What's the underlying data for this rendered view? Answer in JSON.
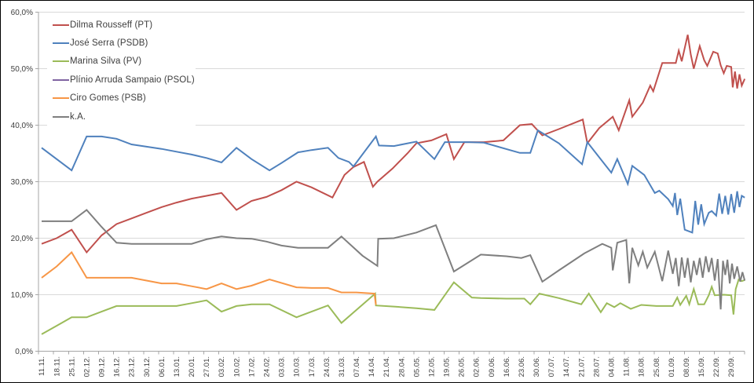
{
  "chart_data": {
    "type": "line",
    "title": "",
    "xlabel": "",
    "ylabel": "",
    "y_axis": {
      "min": 0,
      "max": 60,
      "step": 10,
      "tick_labels": [
        "0,0%",
        "10,0%",
        "20,0%",
        "30,0%",
        "40,0%",
        "50,0%",
        "60,0%"
      ]
    },
    "x_axis": {
      "tick_labels": [
        "11.11.",
        "18.11.",
        "25.11.",
        "02.12.",
        "09.12.",
        "16.12.",
        "23.12.",
        "30.12.",
        "06.01.",
        "13.01.",
        "20.01.",
        "27.01.",
        "03.02.",
        "10.02.",
        "17.02.",
        "24.02.",
        "03.03.",
        "10.03.",
        "17.03.",
        "24.03.",
        "31.03.",
        "07.04.",
        "14.04.",
        "21.04.",
        "28.04.",
        "05.05.",
        "12.05.",
        "19.05.",
        "26.05.",
        "02.06.",
        "09.06.",
        "16.06.",
        "23.06.",
        "30.06.",
        "07.07.",
        "14.07.",
        "21.07.",
        "28.07.",
        "04.08.",
        "11.08.",
        "18.08.",
        "25.08.",
        "01.09.",
        "08.09.",
        "15.09.",
        "22.09.",
        "29.09."
      ]
    },
    "grid": true,
    "legend_position": "top-left",
    "colors": {
      "gridline": "#d9d9d9",
      "axis": "#a6a6a6",
      "tick_label": "#404040"
    },
    "series": [
      {
        "id": "dilma-rousseff-pt",
        "name": "Dilma Rousseff (PT)",
        "color": "#C0504D",
        "points": [
          [
            0,
            19
          ],
          [
            1,
            20
          ],
          [
            2,
            21.5
          ],
          [
            3,
            17.5
          ],
          [
            4,
            20.5
          ],
          [
            5,
            22.5
          ],
          [
            6,
            23.5
          ],
          [
            7,
            24.5
          ],
          [
            8,
            25.5
          ],
          [
            9,
            26.3
          ],
          [
            10,
            27
          ],
          [
            11,
            27.5
          ],
          [
            12,
            28
          ],
          [
            13,
            25
          ],
          [
            14,
            26.6
          ],
          [
            15,
            27.3
          ],
          [
            16,
            28.5
          ],
          [
            17,
            30
          ],
          [
            18,
            29
          ],
          [
            19.4,
            27.2
          ],
          [
            20.2,
            31.2
          ],
          [
            20.8,
            32.6
          ],
          [
            21.5,
            33.5
          ],
          [
            22.1,
            29.1
          ],
          [
            22.4,
            30
          ],
          [
            23.4,
            32.3
          ],
          [
            24.4,
            35
          ],
          [
            25,
            36.8
          ],
          [
            26,
            37.3
          ],
          [
            27,
            38.4
          ],
          [
            27.5,
            34
          ],
          [
            28.2,
            37
          ],
          [
            29.5,
            37
          ],
          [
            30.8,
            37.3
          ],
          [
            31.9,
            40
          ],
          [
            32.7,
            40.2
          ],
          [
            33.4,
            38.2
          ],
          [
            34.5,
            39.3
          ],
          [
            36.1,
            41
          ],
          [
            36.4,
            36.8
          ],
          [
            37.2,
            39.5
          ],
          [
            38.1,
            41.5
          ],
          [
            38.5,
            39.1
          ],
          [
            39.2,
            44.4
          ],
          [
            39.4,
            41.5
          ],
          [
            40.1,
            44
          ],
          [
            40.6,
            47
          ],
          [
            40.8,
            46
          ],
          [
            41.4,
            51
          ],
          [
            42.3,
            51
          ],
          [
            42.5,
            53.2
          ],
          [
            42.7,
            51.3
          ],
          [
            43.1,
            56
          ],
          [
            43.3,
            52.5
          ],
          [
            43.5,
            50
          ],
          [
            43.9,
            54
          ],
          [
            44.2,
            51.5
          ],
          [
            44.4,
            50.5
          ],
          [
            44.8,
            53
          ],
          [
            45.1,
            52.7
          ],
          [
            45.3,
            50.6
          ],
          [
            45.5,
            49.2
          ],
          [
            45.7,
            50.5
          ],
          [
            46,
            50.3
          ],
          [
            46.1,
            46.7
          ],
          [
            46.25,
            49.5
          ],
          [
            46.4,
            46.5
          ],
          [
            46.55,
            49
          ],
          [
            46.7,
            47
          ],
          [
            46.9,
            48.2
          ]
        ]
      },
      {
        "id": "jose-serra-psdb",
        "name": "José Serra (PSDB)",
        "color": "#4F81BD",
        "points": [
          [
            0,
            36
          ],
          [
            1,
            34
          ],
          [
            2,
            32
          ],
          [
            3,
            38
          ],
          [
            4,
            38
          ],
          [
            5,
            37.6
          ],
          [
            6,
            36.6
          ],
          [
            7,
            36.2
          ],
          [
            8,
            35.8
          ],
          [
            9,
            35.3
          ],
          [
            10,
            34.8
          ],
          [
            11,
            34.2
          ],
          [
            12,
            33.4
          ],
          [
            13,
            36
          ],
          [
            14,
            34
          ],
          [
            15.2,
            32
          ],
          [
            16,
            33.3
          ],
          [
            17.1,
            35.2
          ],
          [
            18,
            35.6
          ],
          [
            19.1,
            36
          ],
          [
            19.8,
            34.2
          ],
          [
            20.5,
            33.5
          ],
          [
            20.8,
            32.7
          ],
          [
            22.3,
            38
          ],
          [
            22.5,
            36.4
          ],
          [
            23.5,
            36.3
          ],
          [
            25,
            37.1
          ],
          [
            26.2,
            34
          ],
          [
            26.9,
            37
          ],
          [
            28.5,
            37
          ],
          [
            29.5,
            36.9
          ],
          [
            31.9,
            35.1
          ],
          [
            32.6,
            35.1
          ],
          [
            33.1,
            39.1
          ],
          [
            34.5,
            36.8
          ],
          [
            36.05,
            33.1
          ],
          [
            36.4,
            37
          ],
          [
            38,
            31.6
          ],
          [
            38.4,
            34
          ],
          [
            39.1,
            29.6
          ],
          [
            39.4,
            32.8
          ],
          [
            40.2,
            31.2
          ],
          [
            40.9,
            28
          ],
          [
            41.2,
            28.4
          ],
          [
            41.8,
            26.9
          ],
          [
            42.1,
            25.7
          ],
          [
            42.25,
            28
          ],
          [
            42.4,
            24.1
          ],
          [
            42.6,
            27
          ],
          [
            42.9,
            21.5
          ],
          [
            43.4,
            21
          ],
          [
            43.6,
            26.6
          ],
          [
            43.8,
            22.4
          ],
          [
            44,
            26
          ],
          [
            44.2,
            22.5
          ],
          [
            44.5,
            24.5
          ],
          [
            44.7,
            24.8
          ],
          [
            45,
            24
          ],
          [
            45.2,
            27.9
          ],
          [
            45.4,
            24.3
          ],
          [
            45.6,
            27.5
          ],
          [
            45.8,
            24.2
          ],
          [
            46,
            27.8
          ],
          [
            46.2,
            24.5
          ],
          [
            46.4,
            28.3
          ],
          [
            46.55,
            25.5
          ],
          [
            46.7,
            27.5
          ],
          [
            46.9,
            27.2
          ]
        ]
      },
      {
        "id": "marina-silva-pv",
        "name": "Marina Silva (PV)",
        "color": "#9BBB59",
        "points": [
          [
            0,
            3
          ],
          [
            1,
            4.5
          ],
          [
            2,
            6
          ],
          [
            3,
            6
          ],
          [
            4,
            7
          ],
          [
            5,
            8
          ],
          [
            6,
            8
          ],
          [
            7,
            8
          ],
          [
            8,
            8
          ],
          [
            9,
            8
          ],
          [
            10,
            8.5
          ],
          [
            11,
            9
          ],
          [
            12,
            7
          ],
          [
            13,
            8
          ],
          [
            14,
            8.3
          ],
          [
            15.2,
            8.3
          ],
          [
            17,
            6
          ],
          [
            19.1,
            8.1
          ],
          [
            20,
            5
          ],
          [
            22.25,
            10.2
          ],
          [
            22.3,
            8.1
          ],
          [
            23.5,
            7.9
          ],
          [
            25,
            7.6
          ],
          [
            26.2,
            7.3
          ],
          [
            27.5,
            12.2
          ],
          [
            28.7,
            9.5
          ],
          [
            29.3,
            9.4
          ],
          [
            31,
            9.3
          ],
          [
            32.2,
            9.3
          ],
          [
            32.6,
            8.3
          ],
          [
            33.2,
            10.2
          ],
          [
            34.5,
            9.4
          ],
          [
            36,
            8.3
          ],
          [
            36.5,
            10.2
          ],
          [
            37.3,
            6.9
          ],
          [
            37.7,
            8.5
          ],
          [
            38.2,
            7.8
          ],
          [
            38.6,
            8.5
          ],
          [
            39.3,
            7.5
          ],
          [
            40,
            8.2
          ],
          [
            41,
            8
          ],
          [
            42.1,
            8
          ],
          [
            42.4,
            9.5
          ],
          [
            42.6,
            8.2
          ],
          [
            43,
            9.8
          ],
          [
            43.2,
            8.3
          ],
          [
            43.5,
            11
          ],
          [
            43.8,
            8.3
          ],
          [
            44.2,
            8.3
          ],
          [
            44.5,
            9.9
          ],
          [
            44.7,
            11.4
          ],
          [
            44.9,
            9.9
          ],
          [
            45.5,
            10
          ],
          [
            46,
            9.9
          ],
          [
            46.15,
            6.5
          ],
          [
            46.3,
            11
          ],
          [
            46.5,
            12.7
          ],
          [
            46.7,
            12.4
          ],
          [
            46.9,
            12.6
          ]
        ]
      },
      {
        "id": "plinio-arruda-sampaio-psol",
        "name": "Plínio Arruda Sampaio (PSOL)",
        "color": "#8064A2",
        "points": []
      },
      {
        "id": "ciro-gomes-psb",
        "name": "Ciro Gomes (PSB)",
        "color": "#F79646",
        "points": [
          [
            0,
            13
          ],
          [
            1,
            15
          ],
          [
            2,
            17.5
          ],
          [
            3,
            13
          ],
          [
            4,
            13
          ],
          [
            5,
            13
          ],
          [
            6,
            13
          ],
          [
            7,
            12.5
          ],
          [
            8,
            12
          ],
          [
            9,
            12
          ],
          [
            10,
            11.5
          ],
          [
            11,
            11
          ],
          [
            12,
            12
          ],
          [
            13,
            11
          ],
          [
            14,
            11.6
          ],
          [
            15.2,
            12.7
          ],
          [
            17,
            11.3
          ],
          [
            18,
            11.2
          ],
          [
            19.1,
            11.2
          ],
          [
            20,
            10.4
          ],
          [
            21,
            10.4
          ],
          [
            22.2,
            10.2
          ],
          [
            22.3,
            8.2
          ]
        ]
      },
      {
        "id": "ka",
        "name": "k.A.",
        "color": "#7F7F7F",
        "points": [
          [
            0,
            23
          ],
          [
            1,
            23
          ],
          [
            2,
            23
          ],
          [
            3,
            25
          ],
          [
            4,
            22
          ],
          [
            5,
            19.2
          ],
          [
            6,
            19
          ],
          [
            7,
            19
          ],
          [
            8,
            19
          ],
          [
            9,
            19
          ],
          [
            10,
            19
          ],
          [
            11,
            19.8
          ],
          [
            12,
            20.3
          ],
          [
            13,
            20
          ],
          [
            14,
            19.9
          ],
          [
            15,
            19.4
          ],
          [
            16,
            18.7
          ],
          [
            17.1,
            18.3
          ],
          [
            19.1,
            18.3
          ],
          [
            20,
            20.3
          ],
          [
            21.4,
            16.9
          ],
          [
            22.4,
            15.1
          ],
          [
            22.45,
            19.9
          ],
          [
            23.5,
            20
          ],
          [
            25,
            21
          ],
          [
            26.3,
            22.3
          ],
          [
            27.5,
            14.1
          ],
          [
            29.3,
            17.1
          ],
          [
            31,
            16.8
          ],
          [
            32,
            16.5
          ],
          [
            32.6,
            17
          ],
          [
            33.4,
            12.3
          ],
          [
            34.5,
            14.3
          ],
          [
            36.2,
            17.3
          ],
          [
            37.4,
            19
          ],
          [
            38,
            18.3
          ],
          [
            38.1,
            14.3
          ],
          [
            38.4,
            19.2
          ],
          [
            39,
            19.7
          ],
          [
            39.2,
            12
          ],
          [
            39.4,
            18.3
          ],
          [
            39.8,
            15.2
          ],
          [
            40.1,
            17.6
          ],
          [
            40.4,
            14.8
          ],
          [
            40.9,
            17.6
          ],
          [
            41.4,
            12.4
          ],
          [
            41.8,
            17.8
          ],
          [
            42.1,
            13.7
          ],
          [
            42.3,
            16.5
          ],
          [
            42.5,
            11.5
          ],
          [
            42.7,
            16.6
          ],
          [
            42.9,
            13
          ],
          [
            43.1,
            16.5
          ],
          [
            43.3,
            12.2
          ],
          [
            43.5,
            16
          ],
          [
            43.7,
            13.5
          ],
          [
            43.9,
            16.5
          ],
          [
            44.1,
            13
          ],
          [
            44.3,
            16.8
          ],
          [
            44.5,
            14
          ],
          [
            44.7,
            16.5
          ],
          [
            44.9,
            12.5
          ],
          [
            45.1,
            16.3
          ],
          [
            45.3,
            7.4
          ],
          [
            45.45,
            16
          ],
          [
            45.6,
            13.5
          ],
          [
            45.75,
            16.2
          ],
          [
            45.9,
            12
          ],
          [
            46.05,
            15.5
          ],
          [
            46.2,
            12.8
          ],
          [
            46.4,
            15
          ],
          [
            46.6,
            12.3
          ],
          [
            46.75,
            14
          ],
          [
            46.9,
            12.5
          ]
        ]
      }
    ]
  },
  "legend": {
    "items": [
      {
        "label": "Dilma Rousseff (PT)"
      },
      {
        "label": "José Serra (PSDB)"
      },
      {
        "label": "Marina Silva (PV)"
      },
      {
        "label": "Plínio Arruda Sampaio (PSOL)"
      },
      {
        "label": "Ciro Gomes (PSB)"
      },
      {
        "label": "k.A."
      }
    ]
  }
}
